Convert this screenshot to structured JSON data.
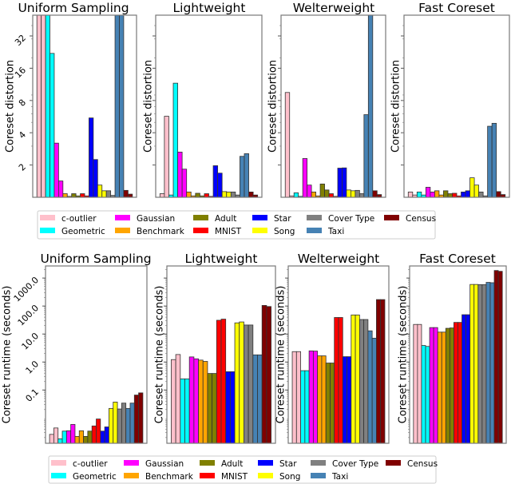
{
  "legend": {
    "entries": [
      {
        "label": "c-outlier",
        "color": "#ffc0cb"
      },
      {
        "label": "Geometric",
        "color": "#00ffff"
      },
      {
        "label": "Gaussian",
        "color": "#ff00ff"
      },
      {
        "label": "Benchmark",
        "color": "#ffa500"
      },
      {
        "label": "Adult",
        "color": "#808000"
      },
      {
        "label": "MNIST",
        "color": "#ff0000"
      },
      {
        "label": "Star",
        "color": "#0000ff"
      },
      {
        "label": "Song",
        "color": "#ffff00"
      },
      {
        "label": "Cover Type",
        "color": "#808080"
      },
      {
        "label": "Taxi",
        "color": "#4682b4"
      },
      {
        "label": "Census",
        "color": "#800000"
      }
    ]
  },
  "chart_data": [
    {
      "type": "bar",
      "ylabel": "Coreset distortion",
      "yscale": "log",
      "ylim": [
        1,
        50
      ],
      "yticks": [
        2,
        4,
        8,
        16,
        32
      ],
      "ytick_labels": [
        "2",
        "4",
        "8",
        "16",
        "32"
      ],
      "categories": [
        "c-outlier",
        "Geometric",
        "Gaussian",
        "Benchmark",
        "Adult",
        "MNIST",
        "Star",
        "Song",
        "Cover Type",
        "Taxi",
        "Census"
      ],
      "bars_per_category": 2,
      "panels": [
        {
          "title": "Uniform Sampling",
          "values": [
            60,
            60,
            60,
            22,
            3.2,
            1.42,
            1.08,
            1.02,
            1.08,
            1.03,
            1.08,
            1.03,
            5.5,
            2.25,
            1.3,
            1.15,
            1.15,
            1.04,
            60,
            60,
            1.16,
            1.07
          ]
        },
        {
          "title": "Lightweight",
          "values": [
            1.08,
            5.7,
            1.05,
            11.6,
            2.64,
            1.83,
            1.12,
            1.03,
            1.09,
            1.03,
            1.08,
            1.02,
            1.97,
            1.68,
            1.13,
            1.12,
            1.12,
            1.05,
            2.41,
            2.55,
            1.12,
            1.05
          ]
        },
        {
          "title": "Welterweight",
          "values": [
            9.5,
            1.03,
            1.1,
            1.02,
            2.3,
            1.3,
            1.12,
            1.03,
            1.33,
            1.17,
            1.08,
            1.02,
            1.87,
            1.88,
            1.17,
            1.15,
            1.16,
            1.08,
            5.9,
            60,
            1.15,
            1.06
          ]
        },
        {
          "title": "Fast Coreset",
          "values": [
            1.12,
            1.05,
            1.12,
            1.05,
            1.24,
            1.12,
            1.15,
            1.05,
            1.15,
            1.08,
            1.09,
            1.03,
            1.12,
            1.15,
            1.52,
            1.3,
            1.12,
            1.03,
            4.6,
            4.9,
            1.13,
            1.06
          ]
        }
      ]
    },
    {
      "type": "bar",
      "ylabel": "Coreset runtime (seconds)",
      "yscale": "log",
      "ylim": [
        0.00125,
        2700
      ],
      "yticks": [
        0.1,
        1,
        10,
        100,
        1000
      ],
      "ytick_labels": [
        "0.1",
        "1.0",
        "10.0",
        "100.0",
        "1000.0"
      ],
      "categories": [
        "c-outlier",
        "Geometric",
        "Gaussian",
        "Benchmark",
        "Adult",
        "MNIST",
        "Star",
        "Song",
        "Cover Type",
        "Taxi",
        "Census"
      ],
      "bars_per_category": 2,
      "panels": [
        {
          "title": "Uniform Sampling",
          "values": [
            0.0026,
            0.0044,
            0.0018,
            0.0034,
            0.0035,
            0.0059,
            0.0022,
            0.0035,
            0.0022,
            0.0034,
            0.0052,
            0.0092,
            0.0034,
            0.0048,
            0.022,
            0.037,
            0.021,
            0.034,
            0.022,
            0.034,
            0.066,
            0.079
          ]
        },
        {
          "title": "Lightweight",
          "values": [
            1.22,
            1.85,
            0.25,
            0.25,
            1.52,
            1.3,
            1.17,
            1.05,
            0.39,
            0.39,
            31,
            34,
            0.45,
            0.45,
            25,
            27,
            21,
            21,
            1.8,
            1.8,
            105,
            96
          ]
        },
        {
          "title": "Welterweight",
          "values": [
            2.35,
            2.35,
            0.49,
            0.49,
            2.5,
            2.45,
            1.66,
            1.66,
            0.92,
            0.92,
            39,
            39,
            1.55,
            1.55,
            48,
            48,
            33,
            33,
            13,
            7.1,
            170,
            170
          ]
        },
        {
          "title": "Fast Coreset",
          "values": [
            22,
            22,
            3.9,
            3.6,
            17,
            17,
            11.7,
            11.7,
            16,
            16.5,
            26,
            26,
            49,
            49,
            590,
            590,
            580,
            580,
            700,
            680,
            1860,
            1740
          ]
        }
      ]
    }
  ]
}
